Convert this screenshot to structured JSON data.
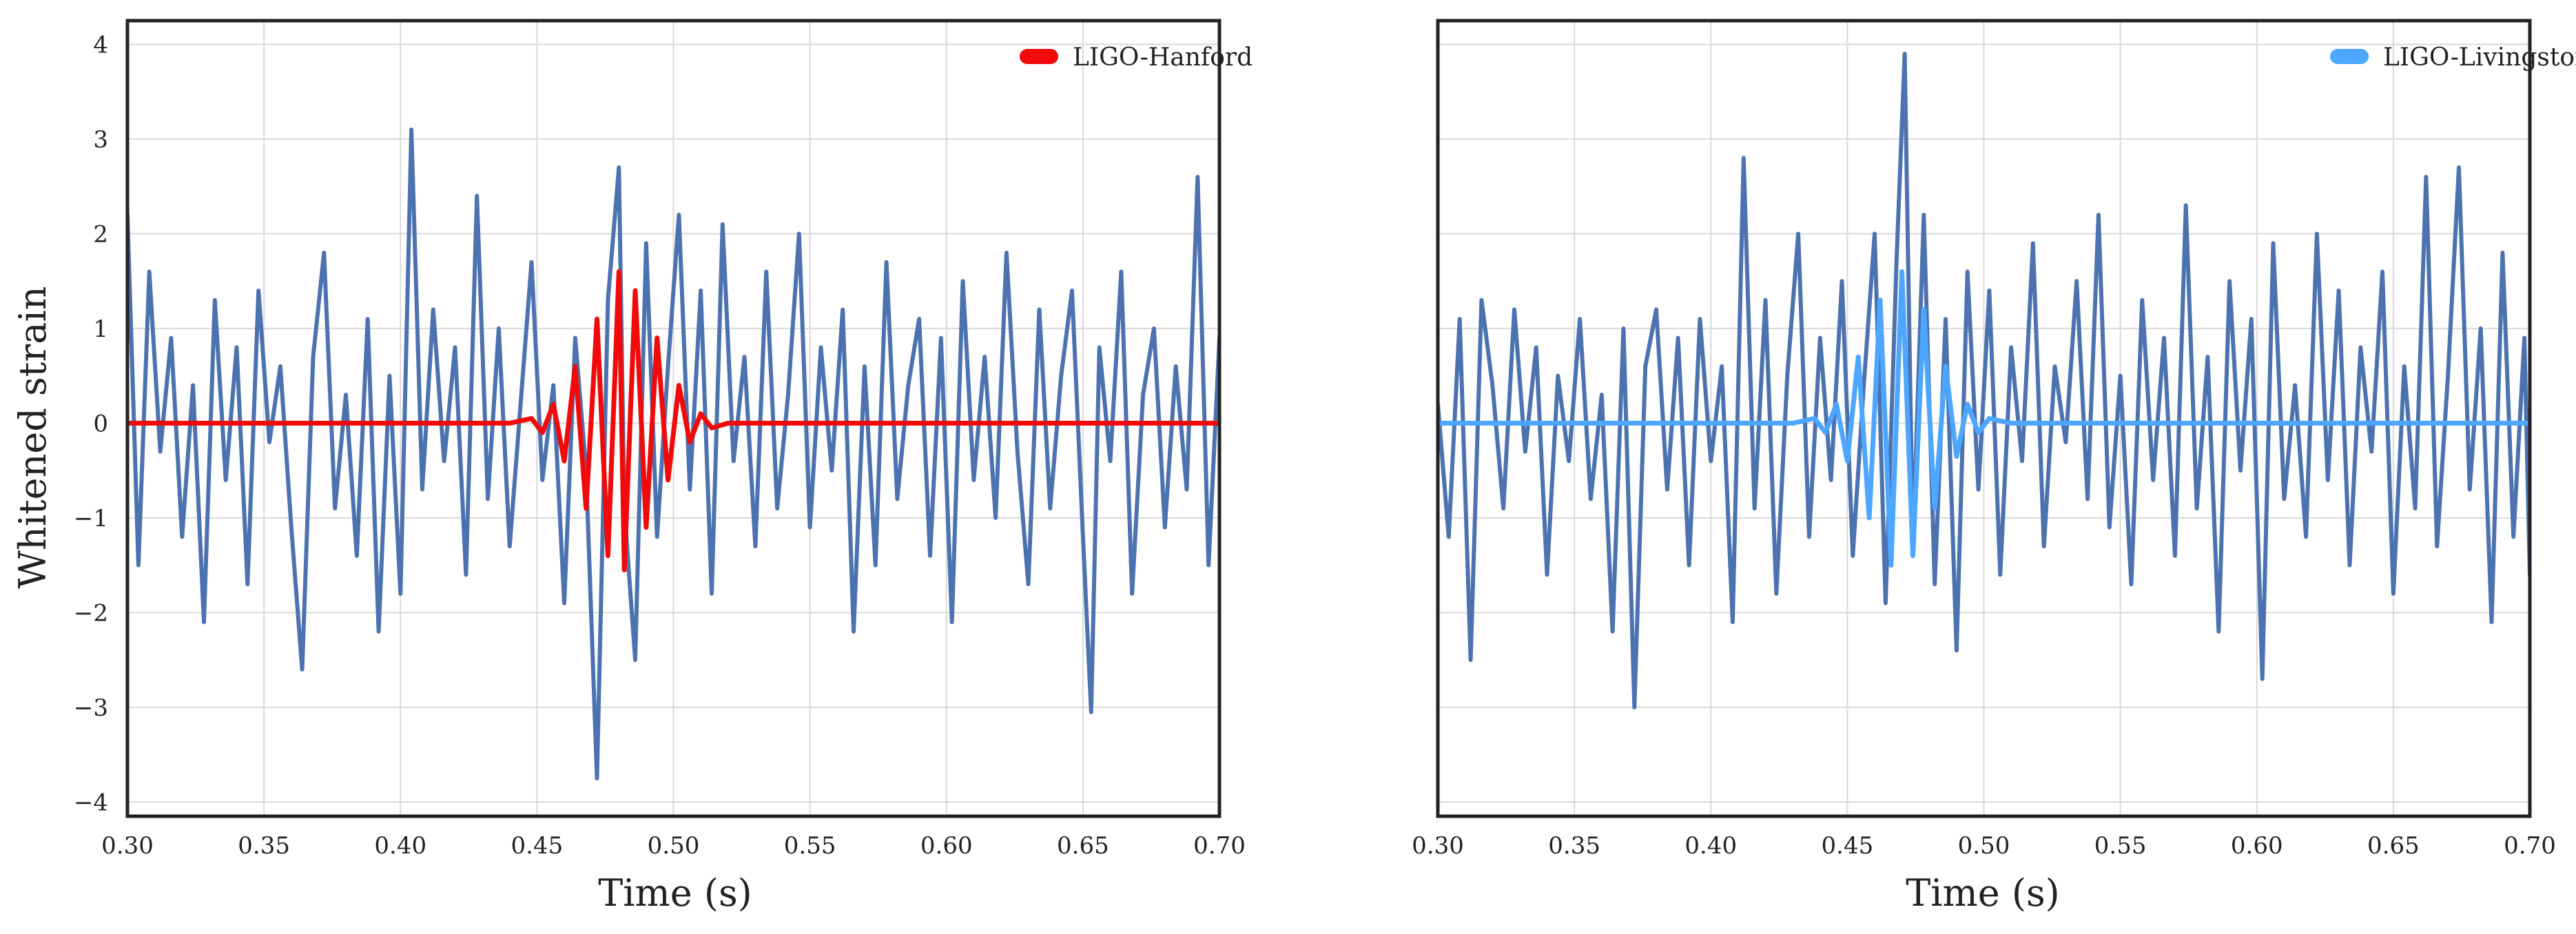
{
  "colors": {
    "noise": "#4c72b0",
    "hanford": "#f00a0a",
    "livingston": "#4da6ff",
    "grid": "#d9d9d9",
    "frame": "#222222",
    "background": "#ffffff"
  },
  "chart_data": [
    {
      "type": "line",
      "xlabel": "Time (s)",
      "ylabel": "Whitened strain",
      "xlim": [
        0.3,
        0.7
      ],
      "ylim": [
        -4.15,
        4.25
      ],
      "xticks": [
        "0.30",
        "0.35",
        "0.40",
        "0.45",
        "0.50",
        "0.55",
        "0.60",
        "0.65",
        "0.70"
      ],
      "yticks": [
        "4",
        "3",
        "2",
        "1",
        "0",
        "−1",
        "−2",
        "−3",
        "−4"
      ],
      "grid": true,
      "legend_position": "top-right",
      "legend": [
        "LIGO-Hanford"
      ],
      "series": [
        {
          "role": "whitened data",
          "color": "#4c72b0",
          "x": [
            0.3,
            0.304,
            0.308,
            0.312,
            0.316,
            0.32,
            0.324,
            0.328,
            0.332,
            0.336,
            0.34,
            0.344,
            0.348,
            0.352,
            0.356,
            0.36,
            0.364,
            0.368,
            0.372,
            0.376,
            0.38,
            0.384,
            0.388,
            0.392,
            0.396,
            0.4,
            0.404,
            0.408,
            0.412,
            0.416,
            0.42,
            0.424,
            0.428,
            0.432,
            0.436,
            0.44,
            0.444,
            0.448,
            0.452,
            0.456,
            0.46,
            0.464,
            0.468,
            0.472,
            0.476,
            0.48,
            0.482,
            0.486,
            0.49,
            0.494,
            0.498,
            0.502,
            0.506,
            0.51,
            0.514,
            0.518,
            0.522,
            0.526,
            0.53,
            0.534,
            0.538,
            0.542,
            0.546,
            0.55,
            0.554,
            0.558,
            0.562,
            0.566,
            0.57,
            0.574,
            0.578,
            0.582,
            0.586,
            0.59,
            0.594,
            0.598,
            0.602,
            0.606,
            0.61,
            0.614,
            0.618,
            0.622,
            0.626,
            0.63,
            0.634,
            0.638,
            0.642,
            0.646,
            0.65,
            0.653,
            0.656,
            0.66,
            0.664,
            0.668,
            0.672,
            0.676,
            0.68,
            0.684,
            0.688,
            0.692,
            0.696,
            0.7
          ],
          "y": [
            2.2,
            -1.5,
            1.6,
            -0.3,
            0.9,
            -1.2,
            0.4,
            -2.1,
            1.3,
            -0.6,
            0.8,
            -1.7,
            1.4,
            -0.2,
            0.6,
            -1.1,
            -2.6,
            0.7,
            1.8,
            -0.9,
            0.3,
            -1.4,
            1.1,
            -2.2,
            0.5,
            -1.8,
            3.1,
            -0.7,
            1.2,
            -0.4,
            0.8,
            -1.6,
            2.4,
            -0.8,
            1.0,
            -1.3,
            0.2,
            1.7,
            -0.6,
            0.4,
            -1.9,
            0.9,
            -0.5,
            -3.75,
            1.3,
            2.7,
            -0.9,
            -2.5,
            1.9,
            -1.2,
            0.6,
            2.2,
            -0.7,
            1.4,
            -1.8,
            2.1,
            -0.4,
            0.7,
            -1.3,
            1.6,
            -0.9,
            0.3,
            2.0,
            -1.1,
            0.8,
            -0.5,
            1.2,
            -2.2,
            0.6,
            -1.5,
            1.7,
            -0.8,
            0.4,
            1.1,
            -1.4,
            0.9,
            -2.1,
            1.5,
            -0.6,
            0.7,
            -1.0,
            1.8,
            -0.3,
            -1.7,
            1.2,
            -0.9,
            0.5,
            1.4,
            -1.2,
            -3.05,
            0.8,
            -0.4,
            1.6,
            -1.8,
            0.3,
            1.0,
            -1.1,
            0.6,
            -0.7,
            2.6,
            -1.5,
            0.9
          ]
        },
        {
          "name": "LIGO-Hanford",
          "color": "#f00a0a",
          "x": [
            0.3,
            0.44,
            0.448,
            0.452,
            0.456,
            0.46,
            0.464,
            0.468,
            0.472,
            0.476,
            0.48,
            0.482,
            0.486,
            0.49,
            0.494,
            0.498,
            0.502,
            0.506,
            0.51,
            0.514,
            0.52,
            0.7
          ],
          "y": [
            0.0,
            0.0,
            0.05,
            -0.1,
            0.2,
            -0.4,
            0.6,
            -0.9,
            1.1,
            -1.4,
            1.6,
            -1.55,
            1.4,
            -1.1,
            0.9,
            -0.6,
            0.4,
            -0.2,
            0.1,
            -0.05,
            0.0,
            0.0
          ]
        }
      ]
    },
    {
      "type": "line",
      "xlabel": "Time (s)",
      "xlim": [
        0.3,
        0.7
      ],
      "ylim": [
        -4.15,
        4.25
      ],
      "xticks": [
        "0.30",
        "0.35",
        "0.40",
        "0.45",
        "0.50",
        "0.55",
        "0.60",
        "0.65",
        "0.70"
      ],
      "grid": true,
      "legend_position": "top-right",
      "legend": [
        "LIGO-Livingston"
      ],
      "series": [
        {
          "role": "whitened data",
          "color": "#4c72b0",
          "x": [
            0.3,
            0.304,
            0.308,
            0.312,
            0.316,
            0.32,
            0.324,
            0.328,
            0.332,
            0.336,
            0.34,
            0.344,
            0.348,
            0.352,
            0.356,
            0.36,
            0.364,
            0.368,
            0.372,
            0.376,
            0.38,
            0.384,
            0.388,
            0.392,
            0.396,
            0.4,
            0.404,
            0.408,
            0.412,
            0.416,
            0.42,
            0.424,
            0.428,
            0.432,
            0.436,
            0.44,
            0.444,
            0.448,
            0.452,
            0.456,
            0.46,
            0.464,
            0.468,
            0.471,
            0.474,
            0.478,
            0.482,
            0.486,
            0.49,
            0.494,
            0.498,
            0.502,
            0.506,
            0.51,
            0.514,
            0.518,
            0.522,
            0.526,
            0.53,
            0.534,
            0.538,
            0.542,
            0.546,
            0.55,
            0.554,
            0.558,
            0.562,
            0.566,
            0.57,
            0.574,
            0.578,
            0.582,
            0.586,
            0.59,
            0.594,
            0.598,
            0.602,
            0.606,
            0.61,
            0.614,
            0.618,
            0.622,
            0.626,
            0.63,
            0.634,
            0.638,
            0.642,
            0.646,
            0.65,
            0.654,
            0.658,
            0.662,
            0.666,
            0.67,
            0.674,
            0.678,
            0.682,
            0.686,
            0.69,
            0.694,
            0.698,
            0.7
          ],
          "y": [
            0.2,
            -1.2,
            1.1,
            -2.5,
            1.3,
            0.4,
            -0.9,
            1.2,
            -0.3,
            0.8,
            -1.6,
            0.5,
            -0.4,
            1.1,
            -0.8,
            0.3,
            -2.2,
            1.0,
            -3.0,
            0.6,
            1.2,
            -0.7,
            0.9,
            -1.5,
            1.1,
            -0.4,
            0.6,
            -2.1,
            2.8,
            -0.9,
            1.3,
            -1.8,
            0.5,
            2.0,
            -1.2,
            0.9,
            -0.6,
            1.5,
            -1.4,
            0.4,
            2.0,
            -1.9,
            1.7,
            3.9,
            -1.3,
            2.2,
            -1.7,
            1.1,
            -2.4,
            1.6,
            -0.7,
            1.4,
            -1.6,
            0.8,
            -0.4,
            1.9,
            -1.3,
            0.6,
            -0.2,
            1.5,
            -0.8,
            2.2,
            -1.1,
            0.5,
            -1.7,
            1.3,
            -0.6,
            0.9,
            -1.4,
            2.3,
            -0.9,
            0.7,
            -2.2,
            1.5,
            -0.5,
            1.1,
            -2.7,
            1.9,
            -0.8,
            0.4,
            -1.2,
            2.0,
            -0.6,
            1.4,
            -1.5,
            0.8,
            -0.3,
            1.6,
            -1.8,
            0.6,
            -0.9,
            2.6,
            -1.3,
            0.5,
            2.7,
            -0.7,
            1.0,
            -2.1,
            1.8,
            -1.2,
            0.9,
            -1.6
          ]
        },
        {
          "name": "LIGO-Livingston",
          "color": "#4da6ff",
          "x": [
            0.3,
            0.43,
            0.438,
            0.442,
            0.446,
            0.45,
            0.454,
            0.458,
            0.462,
            0.466,
            0.47,
            0.474,
            0.478,
            0.482,
            0.486,
            0.49,
            0.494,
            0.498,
            0.502,
            0.51,
            0.7
          ],
          "y": [
            0.0,
            0.0,
            0.05,
            -0.1,
            0.2,
            -0.4,
            0.7,
            -1.0,
            1.3,
            -1.5,
            1.6,
            -1.4,
            1.2,
            -0.9,
            0.6,
            -0.35,
            0.2,
            -0.1,
            0.05,
            0.0,
            0.0
          ]
        }
      ]
    }
  ]
}
